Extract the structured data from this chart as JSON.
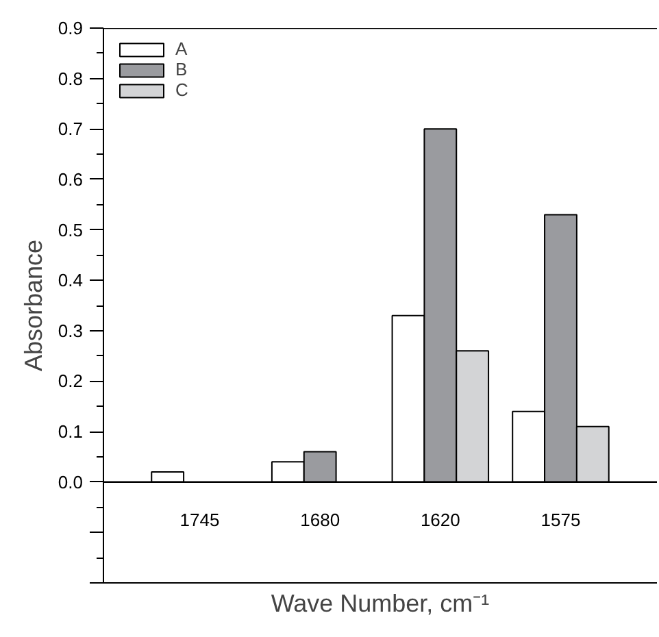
{
  "chart_data": {
    "type": "bar",
    "xlabel": "Wave Number, cm⁻¹",
    "ylabel": "Absorbance",
    "categories": [
      "1745",
      "1680",
      "1620",
      "1575"
    ],
    "series": [
      {
        "name": "A",
        "color": "#ffffff",
        "values": [
          0.02,
          0.04,
          0.33,
          0.14
        ]
      },
      {
        "name": "B",
        "color": "#9a9b9f",
        "values": [
          null,
          0.06,
          0.7,
          0.53
        ]
      },
      {
        "name": "C",
        "color": "#d3d4d6",
        "values": [
          null,
          null,
          0.26,
          0.11
        ]
      }
    ],
    "ylim": [
      -0.2,
      0.9
    ],
    "yticks": [
      {
        "value": -0.2,
        "label": null
      },
      {
        "value": -0.1,
        "label": null
      },
      "0.0",
      0.1,
      0.2,
      0.3,
      0.4,
      0.5,
      0.6,
      0.7,
      0.8,
      0.9
    ],
    "grid": false,
    "legend": "top left"
  }
}
